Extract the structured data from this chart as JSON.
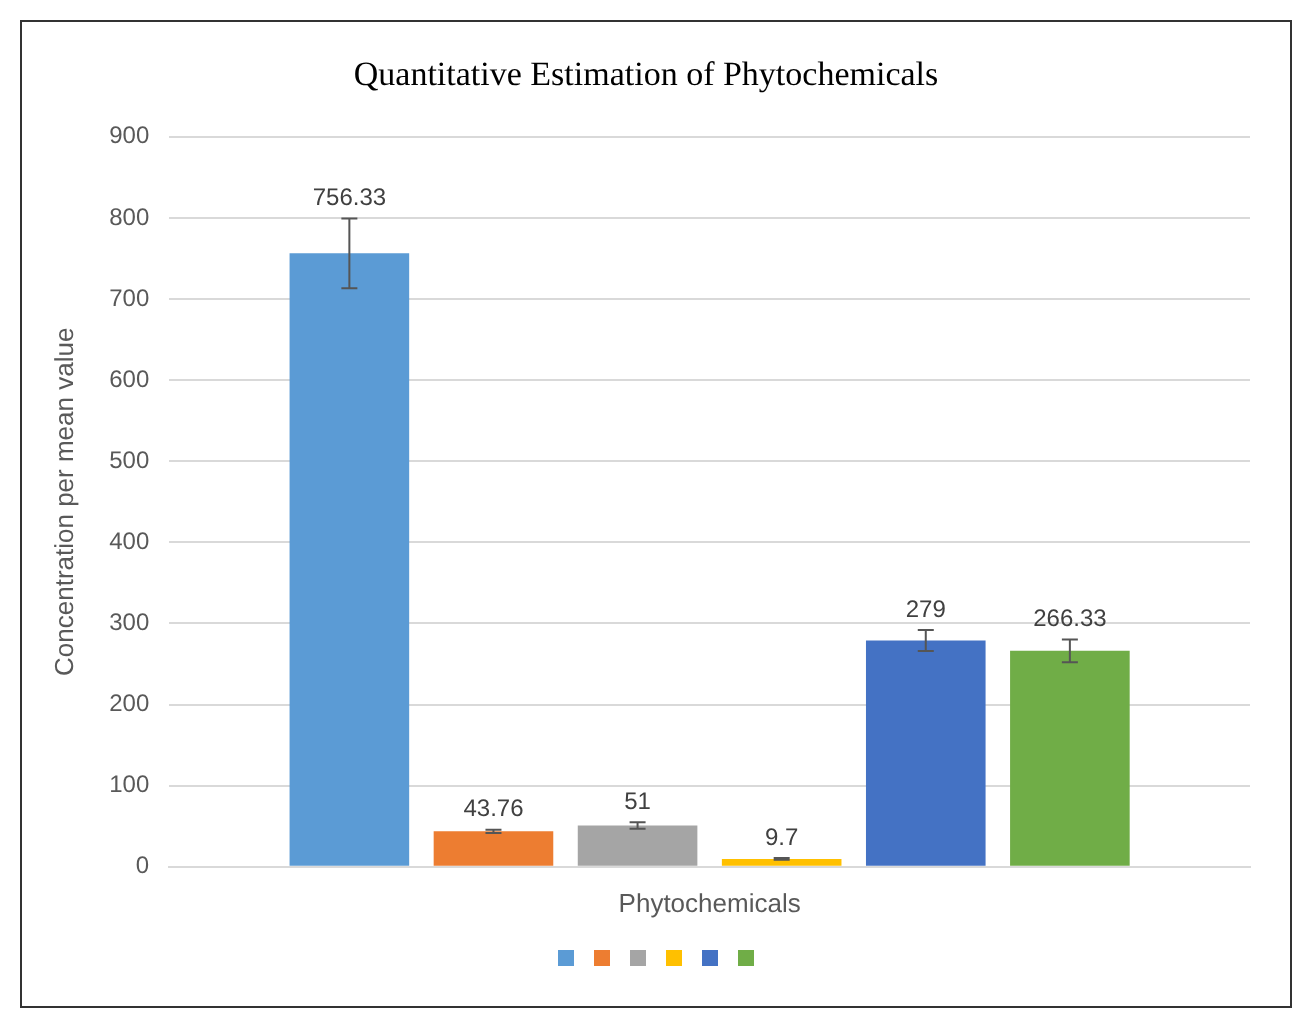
{
  "chart_data": {
    "type": "bar",
    "title": "Quantitative Estimation of Phytochemicals",
    "ylabel": "Concentration per mean value",
    "categories": [
      "Phytochemicals"
    ],
    "series": [
      {
        "color": "#5b9bd5",
        "values": [
          756.33
        ],
        "errors": [
          43
        ]
      },
      {
        "color": "#ed7d31",
        "values": [
          43.76
        ],
        "errors": [
          2
        ]
      },
      {
        "color": "#a5a5a5",
        "values": [
          51
        ],
        "errors": [
          4
        ]
      },
      {
        "color": "#ffc000",
        "values": [
          9.7
        ],
        "errors": [
          1
        ]
      },
      {
        "color": "#4472c4",
        "values": [
          279
        ],
        "errors": [
          13
        ]
      },
      {
        "color": "#70ad47",
        "values": [
          266.33
        ],
        "errors": [
          14
        ]
      }
    ],
    "ylim": [
      0,
      900
    ],
    "yticks": [
      0,
      100,
      200,
      300,
      400,
      500,
      600,
      700,
      800,
      900
    ],
    "grid": "y",
    "data_labels": true
  }
}
